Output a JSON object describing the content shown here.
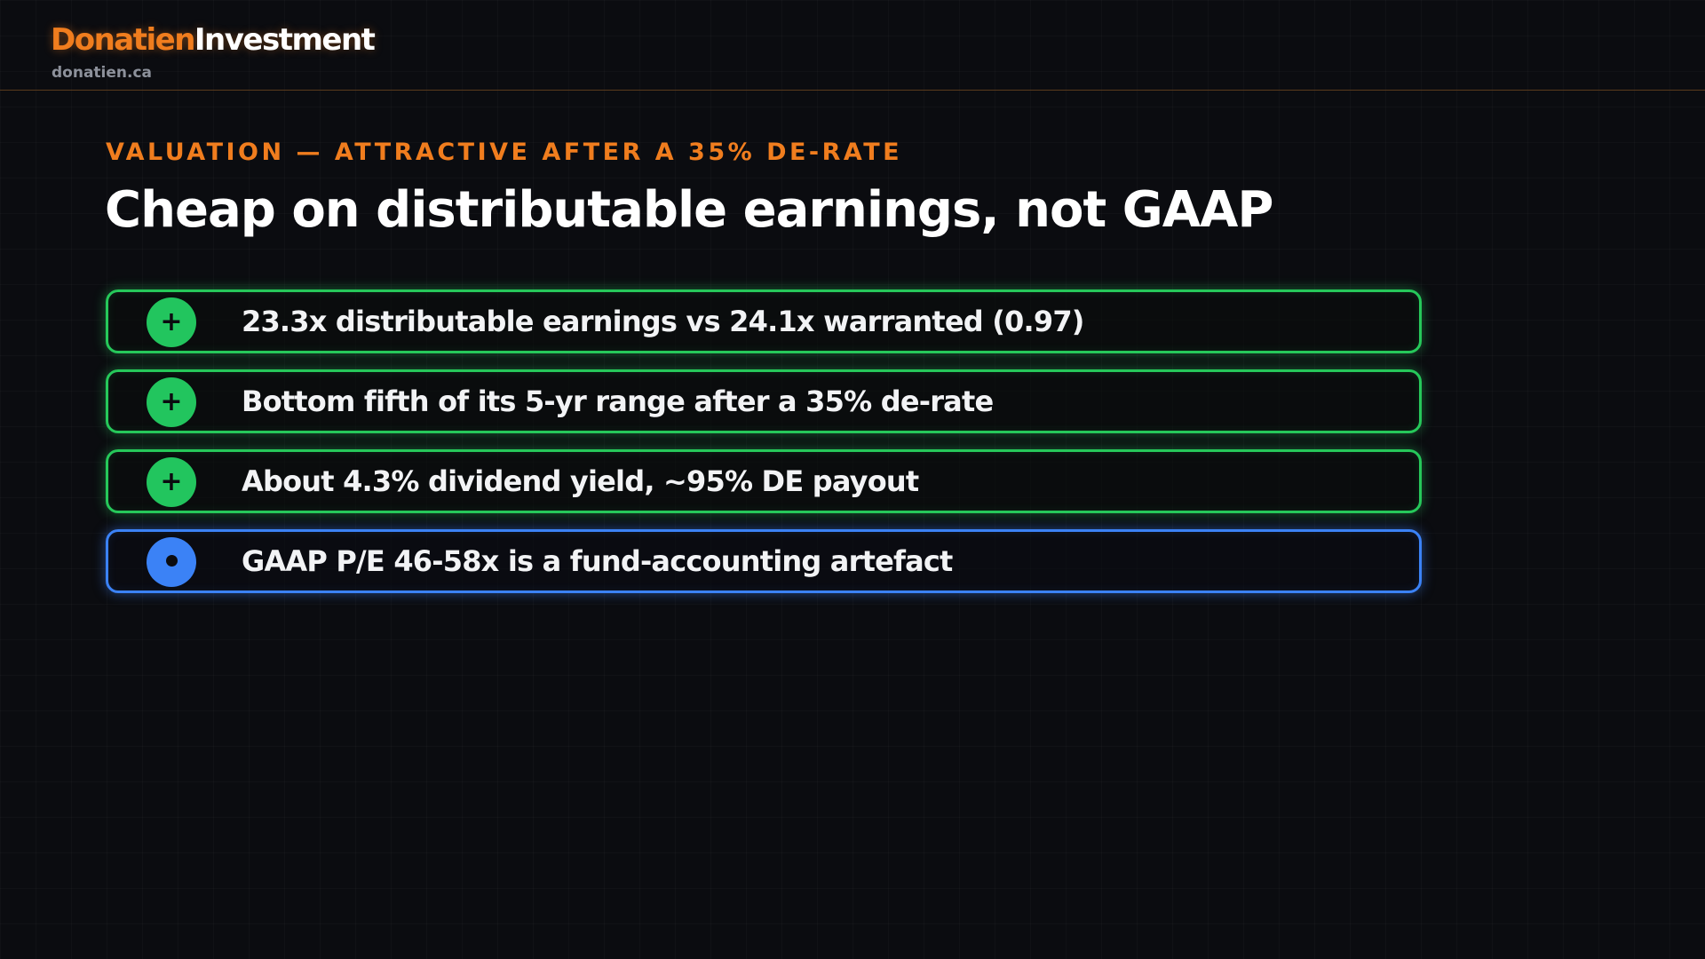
{
  "header": {
    "brand_part1": "Donatien",
    "brand_part2": "Investment",
    "domain": "donatien.ca"
  },
  "slide": {
    "kicker": "VALUATION — ATTRACTIVE AFTER A 35% DE-RATE",
    "title": "Cheap on distributable earnings, not GAAP",
    "points": [
      {
        "icon": "plus-icon",
        "badge": "+",
        "tone": "positive",
        "color": "#22c55e",
        "text": "23.3x distributable earnings vs 24.1x warranted (0.97)"
      },
      {
        "icon": "plus-icon",
        "badge": "+",
        "tone": "positive",
        "color": "#22c55e",
        "text": "Bottom fifth of its 5-yr range after a 35% de-rate"
      },
      {
        "icon": "plus-icon",
        "badge": "+",
        "tone": "positive",
        "color": "#22c55e",
        "text": "About 4.3% dividend yield, ~95% DE payout"
      },
      {
        "icon": "dot-icon",
        "badge": "",
        "tone": "neutral",
        "color": "#3b82f6",
        "text": "GAAP P/E 46-58x is a fund-accounting artefact"
      }
    ]
  },
  "colors": {
    "accent": "#f07d1e",
    "positive": "#22c55e",
    "neutral": "#3b82f6",
    "background": "#0b0c10"
  }
}
